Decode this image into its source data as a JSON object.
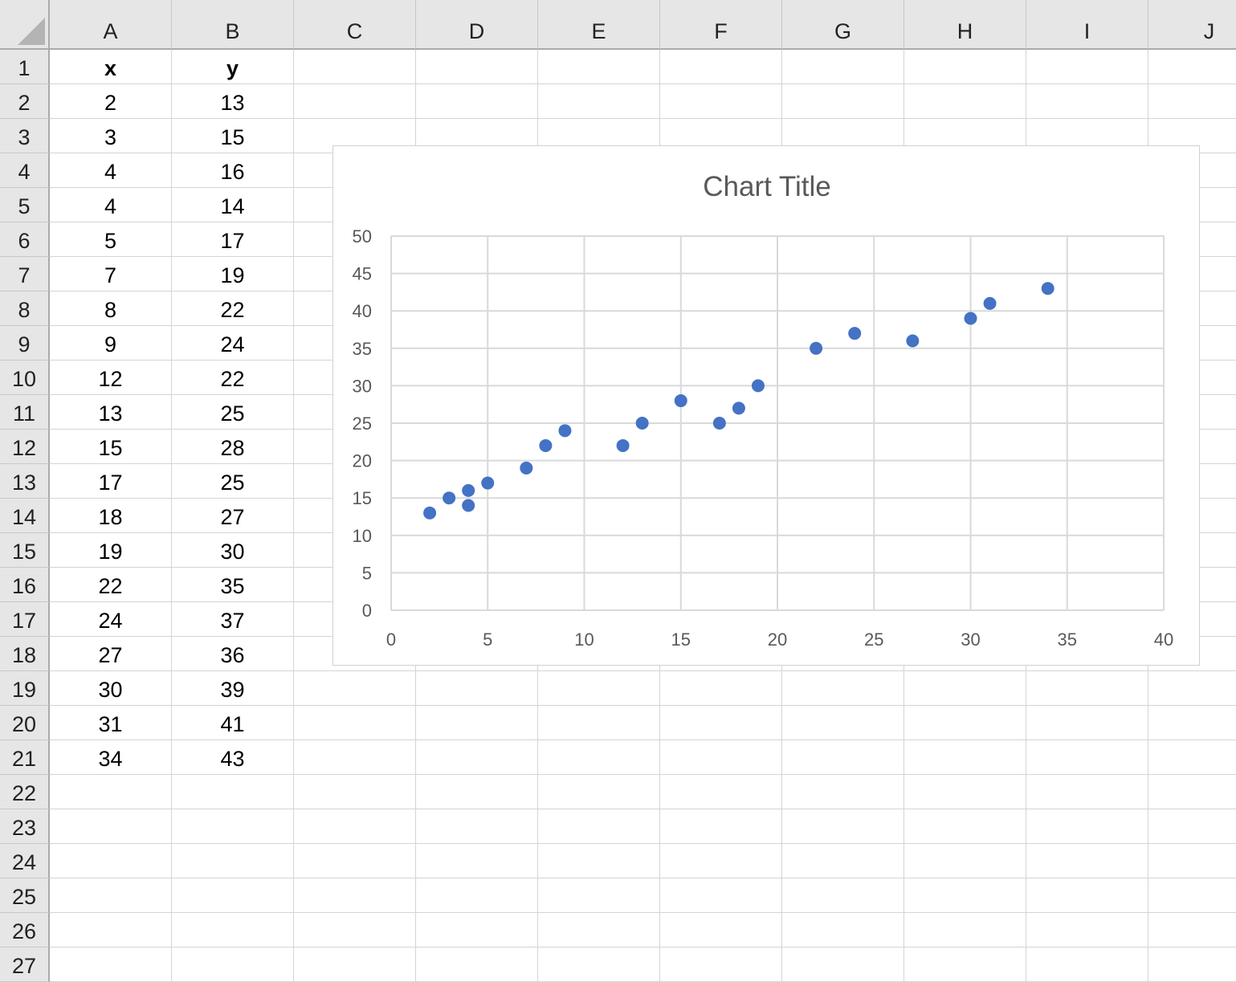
{
  "sheet": {
    "columns": [
      "A",
      "B",
      "C",
      "D",
      "E",
      "F",
      "G",
      "H",
      "I",
      "J"
    ],
    "row_count": 27,
    "headers": {
      "A": "x",
      "B": "y"
    },
    "rows": [
      [
        "2",
        "13"
      ],
      [
        "3",
        "15"
      ],
      [
        "4",
        "16"
      ],
      [
        "4",
        "14"
      ],
      [
        "5",
        "17"
      ],
      [
        "7",
        "19"
      ],
      [
        "8",
        "22"
      ],
      [
        "9",
        "24"
      ],
      [
        "12",
        "22"
      ],
      [
        "13",
        "25"
      ],
      [
        "15",
        "28"
      ],
      [
        "17",
        "25"
      ],
      [
        "18",
        "27"
      ],
      [
        "19",
        "30"
      ],
      [
        "22",
        "35"
      ],
      [
        "24",
        "37"
      ],
      [
        "27",
        "36"
      ],
      [
        "30",
        "39"
      ],
      [
        "31",
        "41"
      ],
      [
        "34",
        "43"
      ]
    ]
  },
  "chart_data": {
    "type": "scatter",
    "title": "Chart Title",
    "x": [
      2,
      3,
      4,
      4,
      5,
      7,
      8,
      9,
      12,
      13,
      15,
      17,
      18,
      19,
      22,
      24,
      27,
      30,
      31,
      34
    ],
    "y": [
      13,
      15,
      16,
      14,
      17,
      19,
      22,
      24,
      22,
      25,
      28,
      25,
      27,
      30,
      35,
      37,
      36,
      39,
      41,
      43
    ],
    "xlim": [
      0,
      40
    ],
    "ylim": [
      0,
      50
    ],
    "xticks": [
      "0",
      "5",
      "10",
      "15",
      "20",
      "25",
      "30",
      "35",
      "40"
    ],
    "yticks": [
      "0",
      "5",
      "10",
      "15",
      "20",
      "25",
      "30",
      "35",
      "40",
      "45",
      "50"
    ],
    "grid": true,
    "marker_color": "#4472C4"
  }
}
